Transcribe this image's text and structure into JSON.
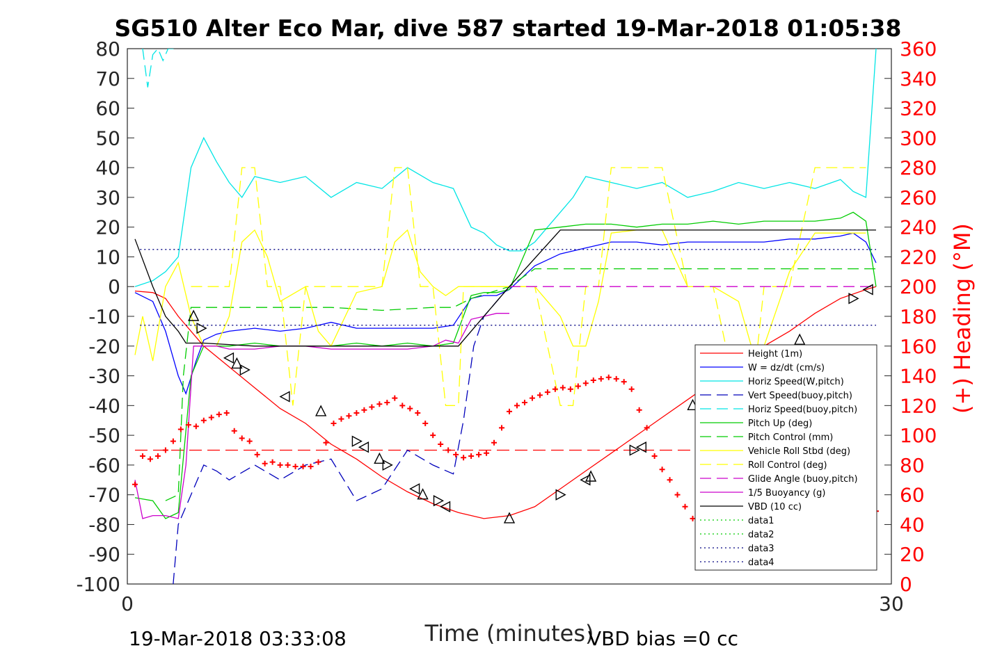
{
  "chart_data": {
    "type": "line",
    "title": "SG510 Alter Eco Mar, dive 587 started 19-Mar-2018 01:05:38",
    "xlabel": "Time (minutes)",
    "ylabel": "",
    "y2label": "(+) Heading (°M)",
    "xlim": [
      0,
      30
    ],
    "ylim": [
      -100,
      80
    ],
    "y2lim": [
      0,
      360
    ],
    "x_ticks": [
      "0",
      "30"
    ],
    "y_ticks": [
      "80",
      "70",
      "60",
      "50",
      "40",
      "30",
      "20",
      "10",
      "0",
      "-10",
      "-20",
      "-30",
      "-40",
      "-50",
      "-60",
      "-70",
      "-80",
      "-90",
      "-100"
    ],
    "y2_ticks": [
      "360",
      "340",
      "320",
      "300",
      "280",
      "260",
      "240",
      "220",
      "200",
      "180",
      "160",
      "140",
      "120",
      "100",
      "80",
      "60",
      "40",
      "20",
      "0"
    ],
    "footer_left": "19-Mar-2018 03:33:08",
    "footer_right": "VBD bias =0 cc",
    "legend_position": "lower-right",
    "series": [
      {
        "name": "Height (1m)",
        "color": "#ff0000",
        "style": "solid",
        "x": [
          0.3,
          1,
          1.5,
          2,
          2.5,
          3,
          4,
          5,
          6,
          7,
          8,
          9,
          10,
          11,
          12,
          13,
          14,
          15,
          16,
          17,
          18,
          19,
          20,
          21,
          22,
          23,
          24,
          25,
          26,
          27,
          28,
          29,
          29.4
        ],
        "y": [
          -1.5,
          -2,
          -4,
          -10,
          -15,
          -20,
          -27,
          -34,
          -41,
          -46,
          -53,
          -58,
          -64,
          -69,
          -73,
          -76,
          -78,
          -77,
          -74,
          -68,
          -62,
          -56,
          -50,
          -44,
          -38,
          -32,
          -26,
          -20,
          -15,
          -9,
          -4,
          -1,
          0
        ]
      },
      {
        "name": "W = dz/dt (cm/s)",
        "color": "#0000ff",
        "style": "solid",
        "x": [
          0.3,
          1,
          1.5,
          2,
          2.3,
          2.7,
          3,
          3.5,
          4,
          5,
          6,
          7,
          8,
          9,
          10,
          11,
          12,
          12.8,
          13.5,
          14,
          14.5,
          15,
          16,
          17,
          18,
          19,
          20,
          21,
          22,
          23,
          24,
          25,
          26,
          27,
          28,
          28.5,
          29,
          29.4
        ],
        "y": [
          -2,
          -5,
          -15,
          -30,
          -36,
          -25,
          -18,
          -16,
          -15,
          -14,
          -15,
          -14,
          -12,
          -14,
          -14,
          -14,
          -14,
          -13,
          -4,
          -3,
          -3,
          -1,
          7,
          11,
          13,
          15,
          15,
          14,
          15,
          15,
          15,
          15,
          16,
          16,
          17,
          18,
          15,
          8
        ]
      },
      {
        "name": "Horiz Speed(W,pitch)",
        "color": "#00e5e5",
        "style": "solid",
        "x": [
          0.3,
          1,
          1.5,
          2,
          2.5,
          3,
          3.5,
          4,
          4.5,
          5,
          6,
          7,
          8,
          9,
          10,
          11,
          12,
          12.8,
          13.5,
          14,
          14.5,
          15,
          15.5,
          16,
          16.5,
          17,
          17.5,
          18,
          19,
          20,
          21,
          22,
          23,
          24,
          25,
          26,
          27,
          28,
          28.5,
          29,
          29.4
        ],
        "y": [
          0,
          2,
          5,
          10,
          40,
          50,
          42,
          35,
          30,
          37,
          35,
          37,
          30,
          35,
          33,
          40,
          35,
          33,
          20,
          18,
          14,
          12,
          12,
          15,
          20,
          25,
          30,
          37,
          35,
          33,
          35,
          30,
          32,
          35,
          33,
          35,
          33,
          36,
          32,
          30,
          80
        ]
      },
      {
        "name": "Vert Speed(buoy,pitch)",
        "color": "#0000bb",
        "style": "dashed",
        "x": [
          1.8,
          2,
          2.5,
          3,
          3.5,
          4,
          5,
          6,
          7,
          8,
          9,
          10,
          11,
          12,
          12.8,
          13.2,
          13.6,
          14,
          14.5,
          15
        ],
        "y": [
          -100,
          -80,
          -70,
          -60,
          -62,
          -65,
          -60,
          -65,
          -60,
          -58,
          -72,
          -68,
          -55,
          -60,
          -63,
          -45,
          -20,
          -10,
          -5,
          0
        ]
      },
      {
        "name": "Horiz Speed(buoy,pitch)",
        "color": "#00e5e5",
        "style": "dashed",
        "x": [
          0.6,
          0.8,
          1,
          1.2,
          1.4,
          1.6,
          1.8,
          2
        ],
        "y": [
          80,
          67,
          78,
          80,
          76,
          80,
          80,
          80
        ]
      },
      {
        "name": "Pitch Up (deg)",
        "color": "#00cc00",
        "style": "solid",
        "x": [
          0.3,
          1,
          1.5,
          2,
          2.5,
          3,
          4,
          5,
          6,
          7,
          8,
          9,
          10,
          11,
          12,
          12.8,
          13.5,
          14,
          14.5,
          15,
          16,
          17,
          18,
          19,
          20,
          21,
          22,
          23,
          24,
          25,
          26,
          27,
          28,
          28.5,
          29,
          29.4
        ],
        "y": [
          -71,
          -72,
          -78,
          -76,
          -30,
          -20,
          -20,
          -19,
          -20,
          -20,
          -20,
          -19,
          -20,
          -19,
          -20,
          -19,
          -3,
          -2,
          -2,
          -1,
          19,
          20,
          21,
          21,
          20,
          21,
          21,
          22,
          21,
          22,
          22,
          22,
          23,
          25,
          22,
          0
        ]
      },
      {
        "name": "Pitch Control (mm)",
        "color": "#00cc00",
        "style": "dashed",
        "x": [
          1.5,
          2,
          2.2,
          2.5,
          3,
          5,
          8,
          10,
          12,
          12.8,
          13.5,
          15,
          16,
          20,
          24,
          28,
          29.4
        ],
        "y": [
          -72,
          -70,
          -30,
          -7,
          -7,
          -7,
          -7,
          -8,
          -7,
          -7,
          -4,
          0,
          6,
          6,
          6,
          6,
          6
        ]
      },
      {
        "name": "Vehicle Roll Stbd (deg)",
        "color": "#ffff00",
        "style": "solid",
        "x": [
          0.3,
          0.6,
          1,
          1.5,
          2,
          2.5,
          3,
          3.5,
          4,
          4.5,
          5,
          5.5,
          6,
          7,
          7.5,
          8,
          9,
          10,
          10.5,
          11,
          11.5,
          12,
          12.5,
          13,
          14,
          15,
          16,
          17,
          17.5,
          18,
          18.5,
          19,
          20,
          21,
          22,
          23,
          24,
          24.5,
          25,
          26,
          27,
          28,
          29
        ],
        "y": [
          -23,
          -10,
          -25,
          0,
          8,
          -10,
          -20,
          -20,
          -10,
          15,
          19,
          10,
          -5,
          0,
          -15,
          -20,
          -2,
          0,
          15,
          19,
          5,
          0,
          -3,
          0,
          0,
          0,
          0,
          -10,
          -20,
          -20,
          -5,
          18,
          19,
          19,
          0,
          0,
          -5,
          -20,
          -20,
          5,
          18,
          18,
          18
        ]
      },
      {
        "name": "Roll Control (deg)",
        "color": "#ffff00",
        "style": "dashed",
        "x": [
          2.5,
          3,
          4,
          4.5,
          5,
          5.5,
          6,
          6.5,
          7,
          8,
          9,
          10,
          10.5,
          11,
          11.5,
          12,
          12.5,
          13,
          13.2,
          13.5,
          15,
          16,
          17,
          17.5,
          18,
          18.5,
          19,
          20,
          21,
          22,
          22.5,
          23,
          24,
          24.5,
          25,
          26,
          27,
          28,
          29
        ],
        "y": [
          0,
          0,
          0,
          40,
          40,
          0,
          0,
          -40,
          0,
          0,
          0,
          0,
          40,
          40,
          0,
          0,
          -40,
          -40,
          0,
          0,
          0,
          0,
          -40,
          -40,
          0,
          0,
          40,
          40,
          40,
          0,
          0,
          0,
          -40,
          -40,
          0,
          0,
          40,
          40,
          40
        ]
      },
      {
        "name": "Glide Angle (buoy,pitch)",
        "color": "#cc00cc",
        "style": "dashed",
        "x": [
          15,
          16,
          20,
          24,
          28,
          29.4
        ],
        "y": [
          0,
          0,
          0,
          0,
          0,
          0
        ]
      },
      {
        "name": "1/5 Buoyancy (g)",
        "color": "#cc00cc",
        "style": "solid",
        "x": [
          0.3,
          0.6,
          1,
          1.5,
          2,
          2.3,
          2.6,
          3,
          3.5,
          4,
          5,
          6,
          7,
          8,
          9,
          10,
          11,
          12,
          12.5,
          13,
          13.5,
          14,
          14.5,
          15
        ],
        "y": [
          -65,
          -78,
          -77,
          -77,
          -78,
          -60,
          -20,
          -20,
          -20,
          -21,
          -21,
          -20,
          -20,
          -21,
          -21,
          -21,
          -21,
          -20,
          -18,
          -19,
          -11,
          -10,
          -9,
          -9
        ]
      },
      {
        "name": "VBD (10 cc)",
        "color": "#000000",
        "style": "solid",
        "x": [
          0.3,
          1,
          1.5,
          2,
          2.3,
          3,
          5,
          8,
          10,
          12,
          13,
          15,
          17,
          18,
          20,
          24,
          28,
          29.4
        ],
        "y": [
          16,
          0,
          -10,
          -15,
          -19,
          -19,
          -20,
          -20,
          -20,
          -20,
          -20,
          0,
          19,
          19,
          19,
          19,
          19,
          19
        ]
      },
      {
        "name": "data1",
        "color": "#00cc00",
        "style": "dotted",
        "x": [],
        "y": []
      },
      {
        "name": "data2",
        "color": "#00cc00",
        "style": "dotted",
        "x": [],
        "y": []
      },
      {
        "name": "data3",
        "color": "#000080",
        "style": "dotted",
        "x": [
          0.5,
          29.4
        ],
        "y": [
          12.5,
          12.5
        ]
      },
      {
        "name": "data4",
        "color": "#000080",
        "style": "dotted",
        "x": [
          0.5,
          29.4
        ],
        "y": [
          -13,
          -13
        ]
      }
    ],
    "reference_line": {
      "color": "#ff0000",
      "style": "dashed",
      "y": -55,
      "x": [
        0.3,
        29.4
      ]
    },
    "heading_points": {
      "color": "#ff0000",
      "marker": "+",
      "x": [
        0.3,
        0.6,
        0.9,
        1.2,
        1.5,
        1.8,
        2.1,
        2.4,
        2.7,
        3.0,
        3.3,
        3.6,
        3.9,
        4.2,
        4.5,
        4.8,
        5.1,
        5.4,
        5.7,
        6.0,
        6.3,
        6.6,
        6.9,
        7.2,
        7.5,
        7.8,
        8.1,
        8.4,
        8.7,
        9.0,
        9.3,
        9.6,
        9.9,
        10.2,
        10.5,
        10.8,
        11.1,
        11.4,
        11.7,
        12.0,
        12.3,
        12.6,
        12.9,
        13.2,
        13.5,
        13.8,
        14.1,
        14.4,
        14.7,
        15.0,
        15.3,
        15.6,
        15.9,
        16.2,
        16.5,
        16.8,
        17.1,
        17.4,
        17.7,
        18.0,
        18.3,
        18.6,
        18.9,
        19.2,
        19.5,
        19.8,
        20.1,
        20.4,
        20.7,
        21.0,
        21.3,
        21.6,
        21.9,
        22.2,
        22.5,
        22.8,
        23.1,
        23.4,
        23.7,
        24.0,
        24.3,
        24.6,
        24.9,
        25.2,
        25.5,
        25.8,
        26.1,
        26.4,
        26.7,
        27.0,
        27.3,
        27.6,
        27.9,
        28.2,
        28.5,
        28.8,
        29.1,
        29.4
      ],
      "y": [
        67,
        86,
        84,
        86,
        90,
        96,
        104,
        107,
        106,
        110,
        112,
        114,
        115,
        103,
        98,
        96,
        87,
        81,
        82,
        80,
        80,
        79,
        79,
        79,
        82,
        95,
        108,
        111,
        113,
        115,
        117,
        119,
        121,
        122,
        125,
        120,
        118,
        115,
        108,
        100,
        94,
        90,
        87,
        85,
        86,
        87,
        88,
        95,
        105,
        116,
        120,
        122,
        125,
        127,
        129,
        131,
        132,
        131,
        133,
        135,
        137,
        138,
        139,
        138,
        136,
        131,
        117,
        105,
        86,
        77,
        70,
        60,
        52,
        44,
        38,
        33,
        40,
        43,
        48,
        58,
        64,
        71,
        79,
        88,
        95,
        103,
        111,
        114,
        112,
        107,
        97,
        84,
        75,
        67,
        59,
        49,
        42,
        49
      ]
    },
    "waypoint_markers": {
      "x": [
        2.6,
        2.9,
        4.0,
        4.3,
        4.6,
        6.2,
        7.6,
        9.0,
        9.3,
        9.9,
        10.2,
        11.3,
        11.6,
        12.2,
        12.5,
        15.0,
        17.0,
        18.0,
        18.2,
        19.9,
        20.2,
        22.2,
        23.7,
        24.6,
        26.4,
        28.5,
        29.1
      ],
      "y": [
        -10,
        -14,
        -24,
        -26,
        -28,
        -37,
        -42,
        -52,
        -54,
        -58,
        -60,
        -68,
        -70,
        -72,
        -74,
        -78,
        -70,
        -65,
        -64,
        -55,
        -54,
        -40,
        -32,
        -27,
        -18,
        -4,
        -1
      ]
    }
  }
}
